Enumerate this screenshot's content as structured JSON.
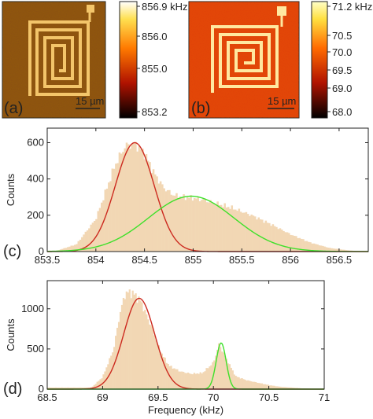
{
  "colors": {
    "histogram": "#f2d7b4",
    "fit_red": "#cc2a1f",
    "fit_green": "#3ee02a",
    "axis": "#222222"
  },
  "panels": {
    "a": {
      "label": "(a)",
      "scalebar_label": "15 µm",
      "colorbar": {
        "ticks": [
          "856.9 kHz",
          "856.0",
          "855.0",
          "853.2"
        ],
        "colormap": "hot"
      }
    },
    "b": {
      "label": "(b)",
      "scalebar_label": "15 µm",
      "colorbar": {
        "ticks": [
          "71.2 kHz",
          "70.5",
          "70.0",
          "69.5",
          "69.0",
          "68.0"
        ],
        "colormap": "hot"
      }
    }
  },
  "chart_data": [
    {
      "panel": "(c)",
      "type": "bar",
      "ylabel": "Counts",
      "xlabel": "",
      "xlim": [
        853.5,
        856.8
      ],
      "ylim": [
        0,
        680
      ],
      "xticks": [
        "853.5",
        "854",
        "854.5",
        "855",
        "855.5",
        "856",
        "856.5"
      ],
      "yticks": [
        "0",
        "200",
        "400",
        "600"
      ],
      "histogram": {
        "x": [
          853.6,
          853.8,
          854.0,
          854.1,
          854.2,
          854.3,
          854.4,
          854.5,
          854.6,
          854.7,
          854.8,
          854.9,
          855.0,
          855.1,
          855.2,
          855.4,
          855.6,
          855.8,
          856.0,
          856.2,
          856.4,
          856.6,
          856.8
        ],
        "counts": [
          5,
          40,
          180,
          330,
          480,
          580,
          595,
          540,
          430,
          350,
          310,
          300,
          295,
          285,
          270,
          240,
          200,
          150,
          95,
          50,
          20,
          6,
          0
        ]
      },
      "fits": [
        {
          "color": "red",
          "center": 854.4,
          "amplitude": 600,
          "sigma": 0.2
        },
        {
          "color": "green",
          "center": 854.98,
          "amplitude": 305,
          "sigma": 0.44
        }
      ]
    },
    {
      "panel": "(d)",
      "type": "bar",
      "ylabel": "Counts",
      "xlabel": "Frequency (kHz)",
      "xlim": [
        68.5,
        71.0
      ],
      "ylim": [
        0,
        1350
      ],
      "xticks": [
        "68.5",
        "69",
        "69.5",
        "70",
        "70.5",
        "71"
      ],
      "yticks": [
        "0",
        "500",
        "1000"
      ],
      "histogram": {
        "x": [
          68.9,
          69.0,
          69.1,
          69.15,
          69.2,
          69.25,
          69.3,
          69.35,
          69.4,
          69.45,
          69.5,
          69.55,
          69.6,
          69.7,
          69.8,
          69.9,
          70.0,
          70.05,
          70.1,
          70.2,
          70.3,
          70.4,
          70.5,
          70.6,
          70.8,
          71.0
        ],
        "counts": [
          20,
          150,
          500,
          900,
          1180,
          1210,
          1160,
          1080,
          900,
          750,
          540,
          400,
          290,
          220,
          190,
          200,
          330,
          560,
          420,
          160,
          110,
          80,
          50,
          30,
          10,
          0
        ]
      },
      "fits": [
        {
          "color": "red",
          "center": 69.33,
          "amplitude": 1130,
          "sigma": 0.14
        },
        {
          "color": "green",
          "center": 70.07,
          "amplitude": 575,
          "sigma": 0.045
        }
      ]
    }
  ]
}
